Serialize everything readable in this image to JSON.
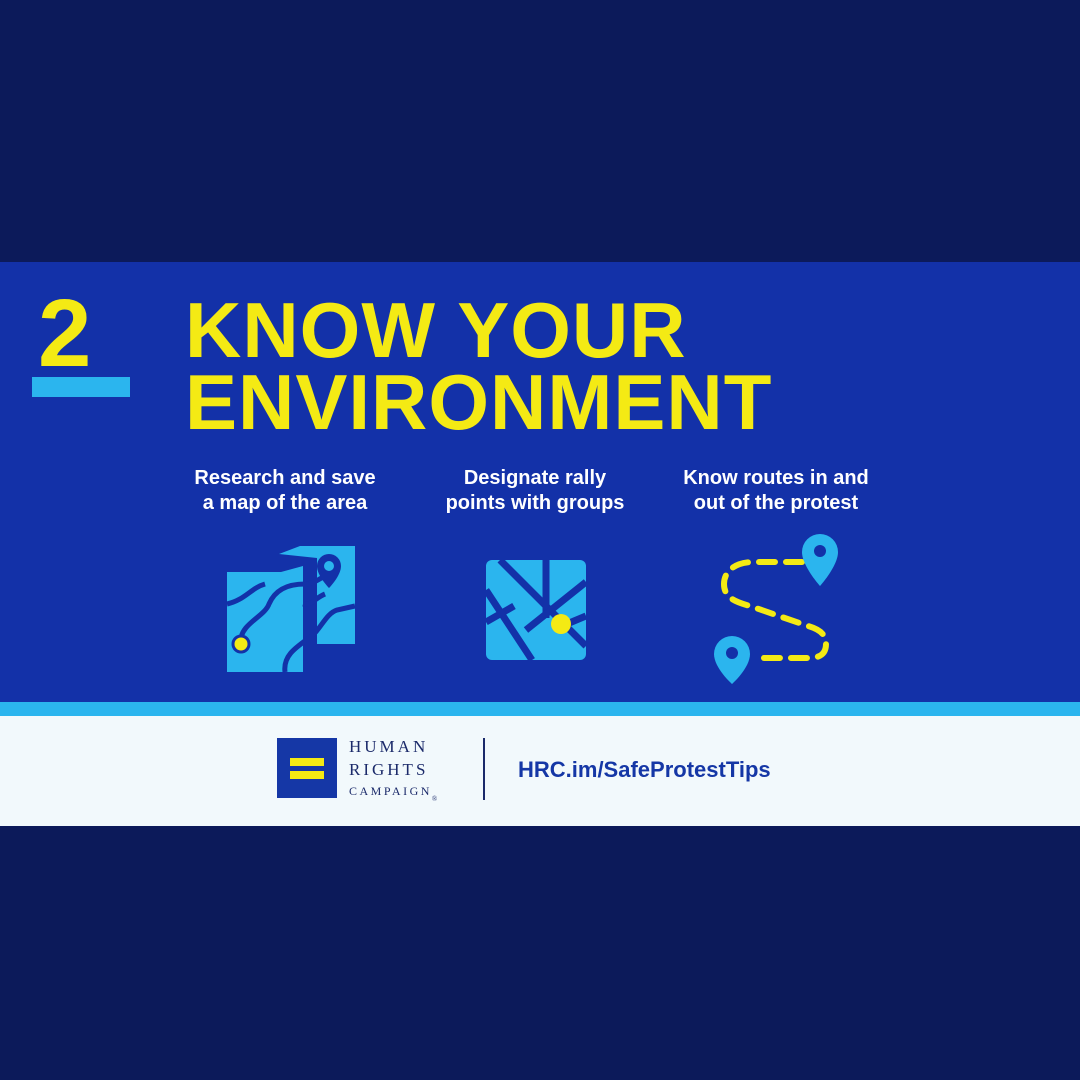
{
  "step": {
    "number": "2",
    "title_line1": "KNOW YOUR",
    "title_line2": "ENVIRONMENT"
  },
  "tips": [
    {
      "line1": "Research and save",
      "line2": "a map of the area",
      "icon": "map-pin-icon"
    },
    {
      "line1": "Designate rally",
      "line2": "points with groups",
      "icon": "street-map-icon"
    },
    {
      "line1": "Know routes in and",
      "line2": "out of the protest",
      "icon": "route-icon"
    }
  ],
  "footer": {
    "logo_line1": "HUMAN",
    "logo_line2": "RIGHTS",
    "logo_line3": "CAMPAIGN",
    "logo_registered": "®",
    "url": "HRC.im/SafeProtestTips"
  },
  "colors": {
    "background": "#0c1a5a",
    "banner": "#1331a8",
    "yellow": "#f4ea14",
    "light_blue": "#2bb5ee",
    "footer": "#f2f9fc"
  }
}
